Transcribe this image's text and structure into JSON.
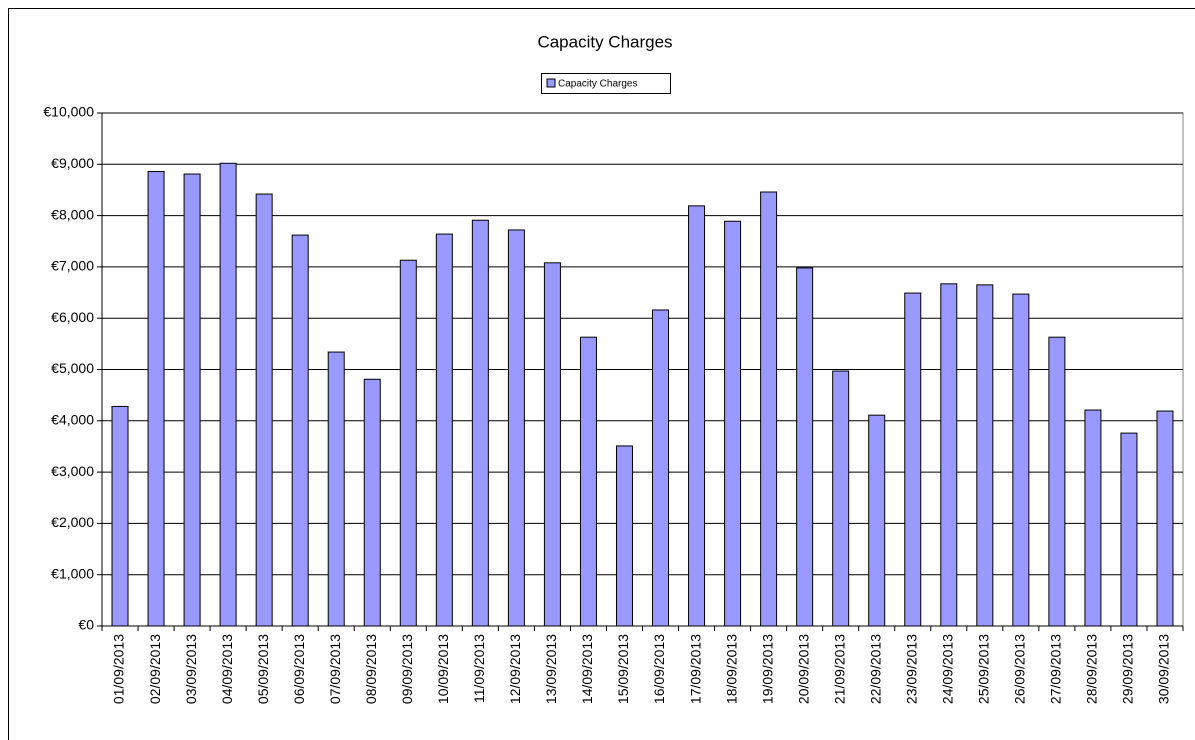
{
  "chart_data": {
    "type": "bar",
    "title": "Capacity Charges",
    "legend": "top",
    "categories": [
      "01/09/2013",
      "02/09/2013",
      "03/09/2013",
      "04/09/2013",
      "05/09/2013",
      "06/09/2013",
      "07/09/2013",
      "08/09/2013",
      "09/09/2013",
      "10/09/2013",
      "11/09/2013",
      "12/09/2013",
      "13/09/2013",
      "14/09/2013",
      "15/09/2013",
      "16/09/2013",
      "17/09/2013",
      "18/09/2013",
      "19/09/2013",
      "20/09/2013",
      "21/09/2013",
      "22/09/2013",
      "23/09/2013",
      "24/09/2013",
      "25/09/2013",
      "26/09/2013",
      "27/09/2013",
      "28/09/2013",
      "29/09/2013",
      "30/09/2013"
    ],
    "series": [
      {
        "name": "Capacity Charges",
        "color": "#9999ff",
        "values": [
          4280,
          8860,
          8810,
          9020,
          8420,
          7620,
          5340,
          4810,
          7130,
          7640,
          7910,
          7720,
          7080,
          5630,
          3510,
          6160,
          8190,
          7890,
          8460,
          6980,
          4970,
          4110,
          6490,
          6670,
          6650,
          6470,
          5630,
          4210,
          3760,
          4190
        ]
      }
    ],
    "ylim": [
      0,
      10000
    ],
    "yticks": [
      {
        "value": 0,
        "label": "€0"
      },
      {
        "value": 1000,
        "label": "€1,000"
      },
      {
        "value": 2000,
        "label": "€2,000"
      },
      {
        "value": 3000,
        "label": "€3,000"
      },
      {
        "value": 4000,
        "label": "€4,000"
      },
      {
        "value": 5000,
        "label": "€5,000"
      },
      {
        "value": 6000,
        "label": "€6,000"
      },
      {
        "value": 7000,
        "label": "€7,000"
      },
      {
        "value": 8000,
        "label": "€8,000"
      },
      {
        "value": 9000,
        "label": "€9,000"
      },
      {
        "value": 10000,
        "label": "€10,000"
      }
    ],
    "grid": true
  }
}
